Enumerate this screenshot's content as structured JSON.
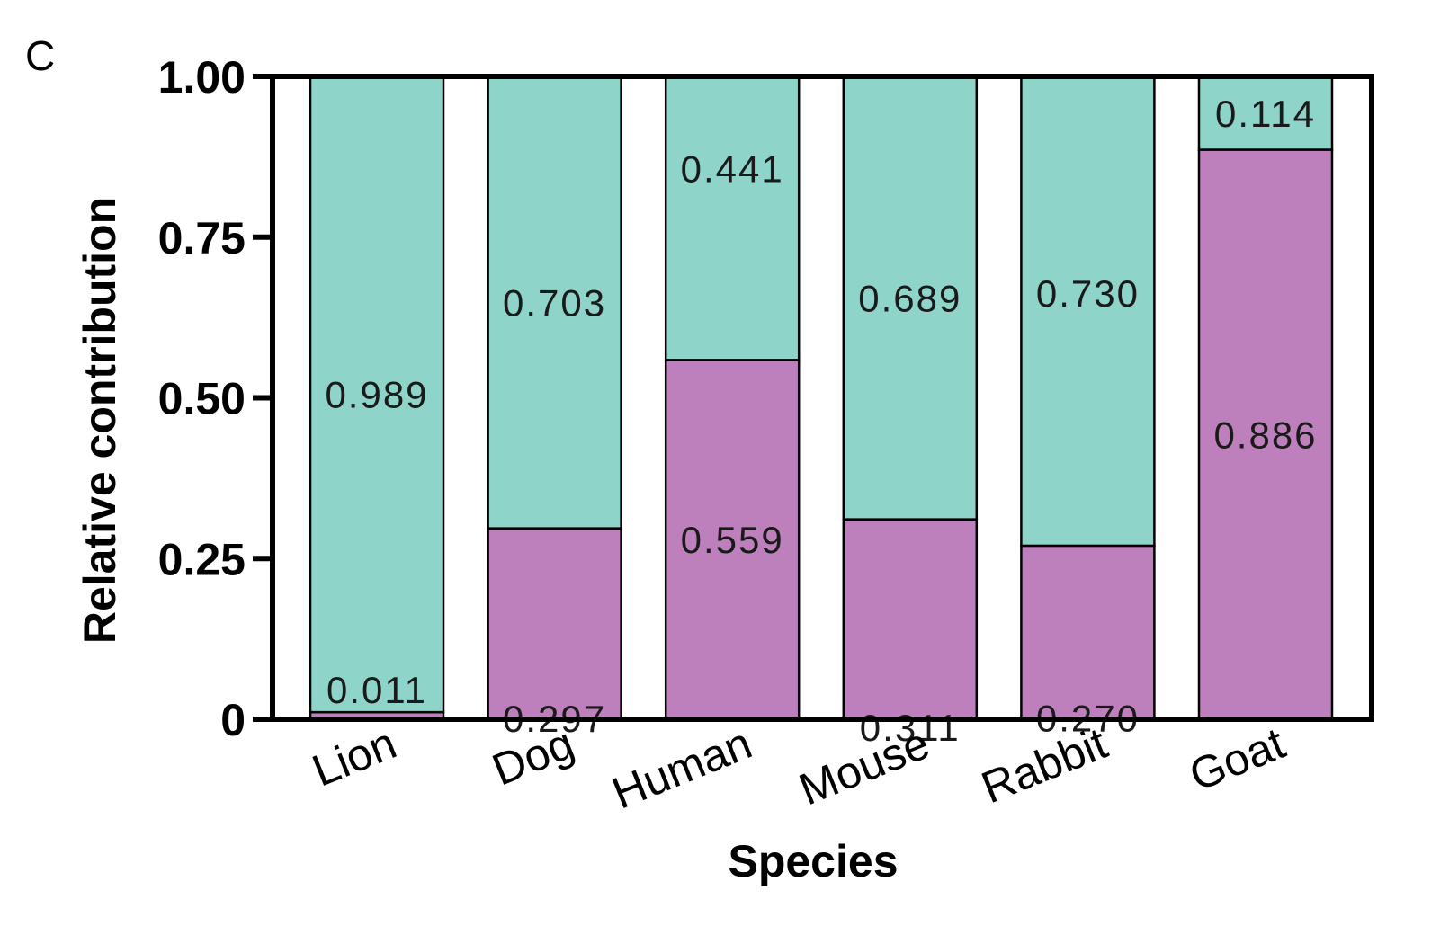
{
  "panel_label": "C",
  "chart_data": {
    "type": "bar",
    "stacked": true,
    "categories": [
      "Lion",
      "Dog",
      "Human",
      "Mouse",
      "Rabbit",
      "Goat"
    ],
    "series": [
      {
        "color": "#bd80bc",
        "values": [
          0.011,
          0.297,
          0.559,
          0.311,
          0.27,
          0.886
        ],
        "labels": [
          "0.011",
          "0.297",
          "0.559",
          "0.311",
          "0.270",
          "0.886"
        ]
      },
      {
        "color": "#8fd4c8",
        "values": [
          0.989,
          0.703,
          0.441,
          0.689,
          0.73,
          0.114
        ],
        "labels": [
          "0.989",
          "0.703",
          "0.441",
          "0.689",
          "0.730",
          "0.114"
        ]
      }
    ],
    "xlabel": "Species",
    "ylabel": "Relative contribution",
    "ylim": [
      0,
      1
    ],
    "yticks": [
      0,
      0.25,
      0.5,
      0.75,
      1.0
    ],
    "ytick_labels": [
      "0",
      "0.25",
      "0.50",
      "0.75",
      "1.00"
    ],
    "legend": "none",
    "grid": false
  }
}
